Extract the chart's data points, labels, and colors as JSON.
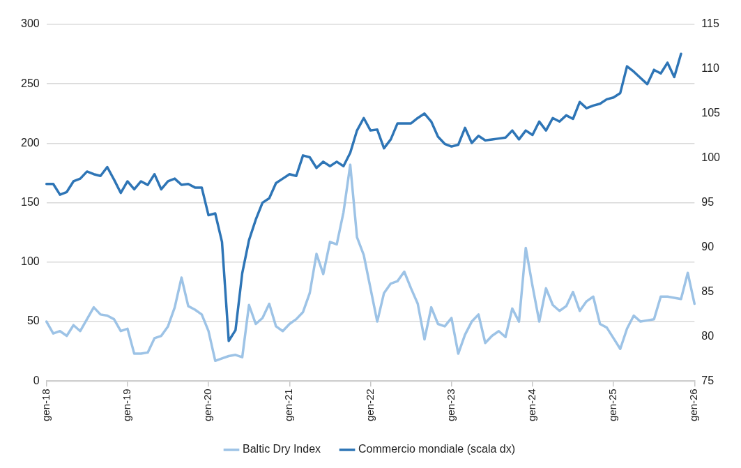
{
  "chart_data": {
    "type": "line",
    "categories": [
      "gen-18",
      null,
      null,
      null,
      null,
      null,
      null,
      null,
      null,
      null,
      null,
      null,
      "gen-19",
      null,
      null,
      null,
      null,
      null,
      null,
      null,
      null,
      null,
      null,
      null,
      "gen-20",
      null,
      null,
      null,
      null,
      null,
      null,
      null,
      null,
      null,
      null,
      null,
      "gen-21",
      null,
      null,
      null,
      null,
      null,
      null,
      null,
      null,
      null,
      null,
      null,
      "gen-22",
      null,
      null,
      null,
      null,
      null,
      null,
      null,
      null,
      null,
      null,
      null,
      "gen-23",
      null,
      null,
      null,
      null,
      null,
      null,
      null,
      null,
      null,
      null,
      null,
      "gen-24",
      null,
      null,
      null,
      null,
      null,
      null,
      null,
      null,
      null,
      null,
      null,
      "gen-25",
      null,
      null,
      null,
      null,
      null,
      null,
      null,
      null,
      null,
      null,
      null,
      "gen-26"
    ],
    "series": [
      {
        "name": "Baltic Dry Index",
        "color": "#9dc3e6",
        "values": [
          50,
          40,
          42,
          38,
          47,
          42,
          52,
          62,
          56,
          55,
          52,
          42,
          44,
          23,
          23,
          24,
          36,
          38,
          46,
          62,
          87,
          63,
          60,
          56,
          42,
          17,
          19,
          21,
          22,
          20,
          64,
          48,
          53,
          65,
          46,
          42,
          48,
          52,
          58,
          74,
          107,
          90,
          117,
          115,
          142,
          182,
          121,
          106,
          78,
          50,
          74,
          82,
          84,
          92,
          78,
          65,
          35,
          62,
          48,
          46,
          53,
          23,
          39,
          50,
          56,
          32,
          38,
          42,
          37,
          61,
          50,
          112,
          80,
          50,
          78,
          64,
          59,
          63,
          75,
          59,
          67,
          71,
          48,
          45,
          36,
          27,
          44,
          55,
          50,
          51,
          52,
          71,
          71,
          70,
          69,
          91,
          65
        ]
      },
      {
        "name": "Commercio mondiale (scala dx)",
        "color": "#2e75b6",
        "axis": "y2",
        "values": [
          97.1,
          97.1,
          95.9,
          96.2,
          97.4,
          97.7,
          98.5,
          98.2,
          98.0,
          99.0,
          97.6,
          96.1,
          97.4,
          96.5,
          97.4,
          97.0,
          98.2,
          96.5,
          97.4,
          97.7,
          97.0,
          97.1,
          96.7,
          96.7,
          93.6,
          93.8,
          90.6,
          79.5,
          80.7,
          87.1,
          90.8,
          93.1,
          95.0,
          95.5,
          97.2,
          97.7,
          98.2,
          98.0,
          100.3,
          100.1,
          98.9,
          99.6,
          99.1,
          99.6,
          99.1,
          100.6,
          103.1,
          104.5,
          103.1,
          103.2,
          101.1,
          102.1,
          103.9,
          103.9,
          103.9,
          104.5,
          105.0,
          104.1,
          102.4,
          101.6,
          101.3,
          101.5,
          103.4,
          101.7,
          102.5,
          102.0,
          102.1,
          102.2,
          102.3,
          103.1,
          102.1,
          103.1,
          102.6,
          104.1,
          103.1,
          104.5,
          104.1,
          104.8,
          104.4,
          106.3,
          105.6,
          105.9,
          106.1,
          106.6,
          106.8,
          107.3,
          110.3,
          109.7,
          109.0,
          108.3,
          109.9,
          109.5,
          110.7,
          109.1,
          111.7,
          null,
          null
        ]
      }
    ],
    "ylim": [
      0,
      300
    ],
    "yticks": [
      0,
      50,
      100,
      150,
      200,
      250,
      300
    ],
    "y2lim": [
      75,
      115
    ],
    "y2ticks": [
      75,
      80,
      85,
      90,
      95,
      100,
      105,
      110,
      115
    ],
    "grid": "y",
    "legend": "bottom",
    "marker": "none",
    "line_style": "solid"
  }
}
